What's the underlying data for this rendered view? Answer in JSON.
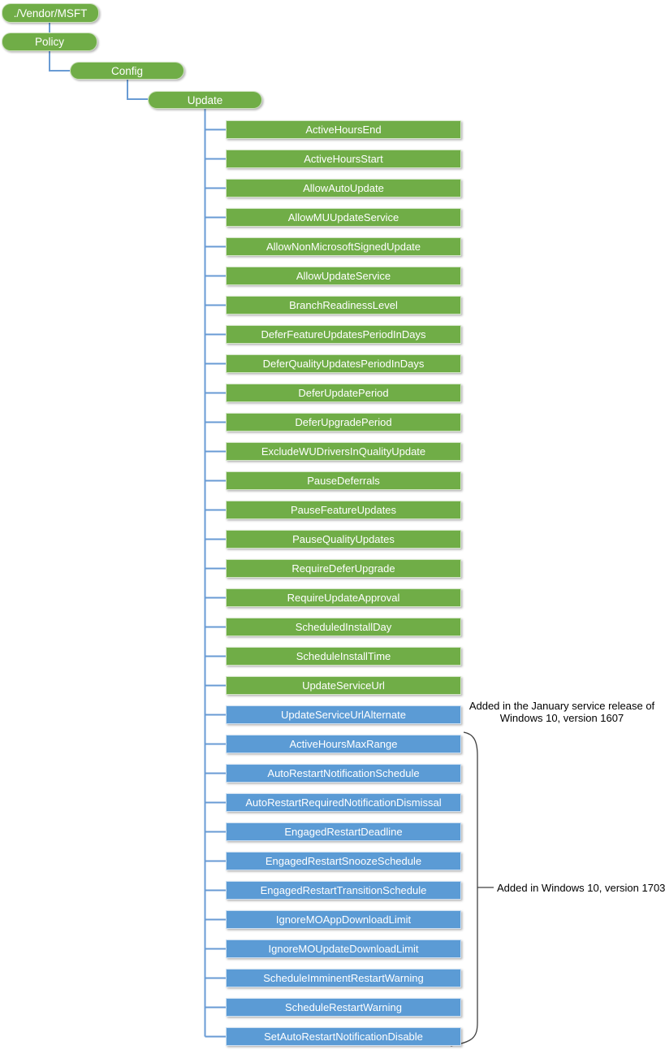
{
  "tree": {
    "path": [
      {
        "label": "./Vendor/MSFT"
      },
      {
        "label": "Policy"
      },
      {
        "label": "Config"
      },
      {
        "label": "Update"
      }
    ]
  },
  "nodes": [
    {
      "label": "ActiveHoursEnd",
      "group": "green"
    },
    {
      "label": "ActiveHoursStart",
      "group": "green"
    },
    {
      "label": "AllowAutoUpdate",
      "group": "green"
    },
    {
      "label": "AllowMUUpdateService",
      "group": "green"
    },
    {
      "label": "AllowNonMicrosoftSignedUpdate",
      "group": "green"
    },
    {
      "label": "AllowUpdateService",
      "group": "green"
    },
    {
      "label": "BranchReadinessLevel",
      "group": "green"
    },
    {
      "label": "DeferFeatureUpdatesPeriodInDays",
      "group": "green"
    },
    {
      "label": "DeferQualityUpdatesPeriodInDays",
      "group": "green"
    },
    {
      "label": "DeferUpdatePeriod",
      "group": "green"
    },
    {
      "label": "DeferUpgradePeriod",
      "group": "green"
    },
    {
      "label": "ExcludeWUDriversInQualityUpdate",
      "group": "green"
    },
    {
      "label": "PauseDeferrals",
      "group": "green"
    },
    {
      "label": "PauseFeatureUpdates",
      "group": "green"
    },
    {
      "label": "PauseQualityUpdates",
      "group": "green"
    },
    {
      "label": "RequireDeferUpgrade",
      "group": "green"
    },
    {
      "label": "RequireUpdateApproval",
      "group": "green"
    },
    {
      "label": "ScheduledInstallDay",
      "group": "green"
    },
    {
      "label": "ScheduleInstallTime",
      "group": "green"
    },
    {
      "label": "UpdateServiceUrl",
      "group": "green"
    },
    {
      "label": "UpdateServiceUrlAlternate",
      "group": "blue"
    },
    {
      "label": "ActiveHoursMaxRange",
      "group": "blue"
    },
    {
      "label": "AutoRestartNotificationSchedule",
      "group": "blue"
    },
    {
      "label": "AutoRestartRequiredNotificationDismissal",
      "group": "blue"
    },
    {
      "label": "EngagedRestartDeadline",
      "group": "blue"
    },
    {
      "label": "EngagedRestartSnoozeSchedule",
      "group": "blue"
    },
    {
      "label": "EngagedRestartTransitionSchedule",
      "group": "blue"
    },
    {
      "label": "IgnoreMOAppDownloadLimit",
      "group": "blue"
    },
    {
      "label": "IgnoreMOUpdateDownloadLimit",
      "group": "blue"
    },
    {
      "label": "ScheduleImminentRestartWarning",
      "group": "blue"
    },
    {
      "label": "ScheduleRestartWarning",
      "group": "blue"
    },
    {
      "label": "SetAutoRestartNotificationDisable",
      "group": "blue"
    }
  ],
  "annotations": {
    "release_1607": "Added in the January service release of\nWindows 10, version 1607",
    "version_1703": "Added in Windows 10, version 1703"
  },
  "colors": {
    "node_green": "#70AD47",
    "node_blue": "#5B9BD5",
    "connector_blue": "#699BD4",
    "brace_gray": "#404040",
    "annotation_text": "#000000"
  }
}
